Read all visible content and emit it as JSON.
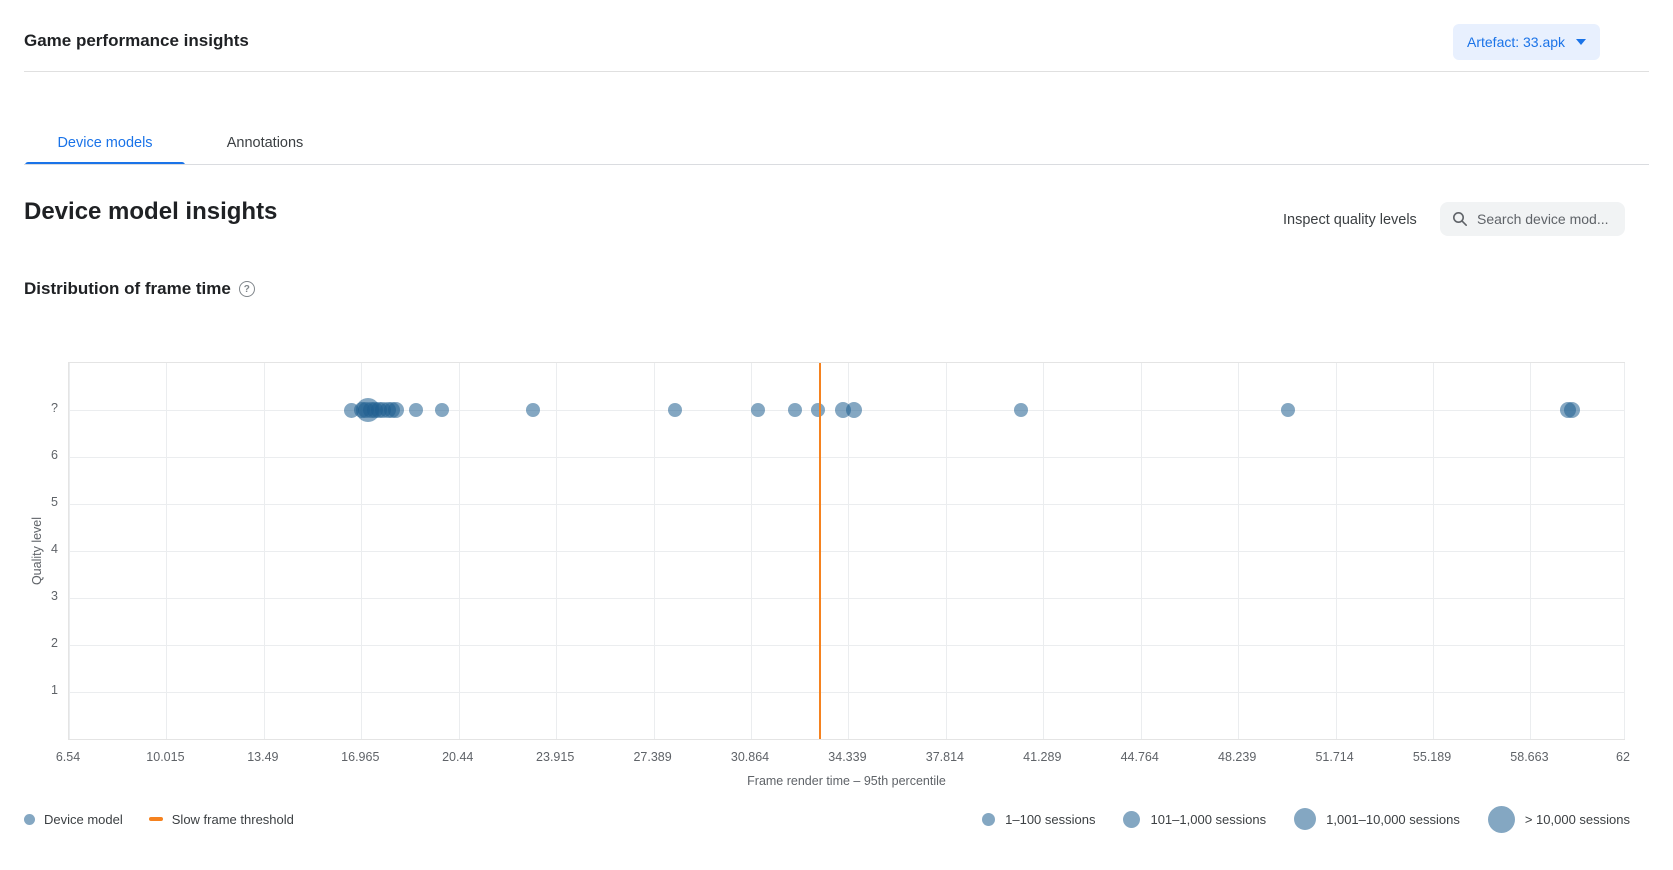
{
  "page": {
    "title": "Game performance insights",
    "artifact_button": {
      "label": "Artefact: 33.apk"
    }
  },
  "tabs": {
    "device_models": "Device models",
    "annotations": "Annotations"
  },
  "section": {
    "heading": "Device model insights",
    "inspect_link": "Inspect quality levels",
    "search_placeholder": "Search device mod..."
  },
  "chart": {
    "heading": "Distribution of frame time"
  },
  "chart_data": {
    "type": "scatter",
    "title": "Distribution of frame time",
    "xlabel": "Frame render time – 95th percentile",
    "ylabel": "Quality level",
    "x_range": [
      6.54,
      62
    ],
    "x_ticks": [
      6.54,
      10.015,
      13.49,
      16.965,
      20.44,
      23.915,
      27.389,
      30.864,
      34.339,
      37.814,
      41.289,
      44.764,
      48.239,
      51.714,
      55.189,
      58.663,
      62
    ],
    "y_categories": [
      "?",
      "6",
      "5",
      "4",
      "3",
      "2",
      "1"
    ],
    "grid": true,
    "point_color": "rgba(31,95,144,0.55)",
    "threshold": {
      "label": "Slow frame threshold",
      "x": 33.33,
      "color": "#f5821f"
    },
    "points": [
      {
        "x": 16.6,
        "y": "?",
        "r": 7.5
      },
      {
        "x": 17.2,
        "y": "?",
        "r": 12
      },
      {
        "x": 17.0,
        "y": "?",
        "r": 8
      },
      {
        "x": 17.15,
        "y": "?",
        "r": 8
      },
      {
        "x": 17.3,
        "y": "?",
        "r": 8
      },
      {
        "x": 17.45,
        "y": "?",
        "r": 8
      },
      {
        "x": 17.6,
        "y": "?",
        "r": 8
      },
      {
        "x": 17.75,
        "y": "?",
        "r": 8
      },
      {
        "x": 17.9,
        "y": "?",
        "r": 8
      },
      {
        "x": 18.05,
        "y": "?",
        "r": 8
      },
      {
        "x": 18.2,
        "y": "?",
        "r": 8
      },
      {
        "x": 18.9,
        "y": "?",
        "r": 7
      },
      {
        "x": 19.85,
        "y": "?",
        "r": 7
      },
      {
        "x": 23.1,
        "y": "?",
        "r": 7
      },
      {
        "x": 28.15,
        "y": "?",
        "r": 7
      },
      {
        "x": 31.1,
        "y": "?",
        "r": 7
      },
      {
        "x": 32.45,
        "y": "?",
        "r": 7
      },
      {
        "x": 33.25,
        "y": "?",
        "r": 7
      },
      {
        "x": 34.15,
        "y": "?",
        "r": 8
      },
      {
        "x": 34.55,
        "y": "?",
        "r": 8
      },
      {
        "x": 40.5,
        "y": "?",
        "r": 7
      },
      {
        "x": 50.0,
        "y": "?",
        "r": 7
      },
      {
        "x": 60.0,
        "y": "?",
        "r": 8
      },
      {
        "x": 60.15,
        "y": "?",
        "r": 8
      }
    ]
  },
  "legend": {
    "series": [
      {
        "label": "Device model",
        "swatch": "dot",
        "color": "#84a7c2"
      },
      {
        "label": "Slow frame threshold",
        "swatch": "line",
        "color": "#f5821f"
      }
    ],
    "sizes": [
      {
        "label": "1–100 sessions",
        "d": 13
      },
      {
        "label": "101–1,000 sessions",
        "d": 17
      },
      {
        "label": "1,001–10,000 sessions",
        "d": 22
      },
      {
        "label": "> 10,000 sessions",
        "d": 27
      }
    ]
  }
}
